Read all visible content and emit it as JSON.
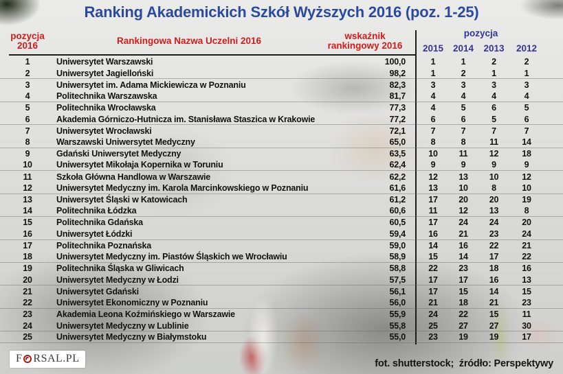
{
  "title": "Ranking Akademickich Szkół Wyższych 2016 (poz. 1-25)",
  "theme": {
    "title_color": "#2b4a9e",
    "header_red": "#d11c1c",
    "header_navy": "#34349b",
    "body_text": "#121212"
  },
  "table": {
    "headers": {
      "position_line1": "pozycja",
      "position_line2": "2016",
      "name": "Rankingowa Nazwa Uczelni 2016",
      "score_line1": "wskaźnik",
      "score_line2": "rankingowy 2016",
      "years_group": "pozycja",
      "years": [
        "2015",
        "2014",
        "2013",
        "2012"
      ]
    }
  },
  "chart_data": {
    "type": "table",
    "title": "Ranking Akademickich Szkół Wyższych 2016 (poz. 1-25)",
    "columns": [
      "pozycja 2016",
      "Rankingowa Nazwa Uczelni 2016",
      "wskaźnik rankingowy 2016",
      "pozycja 2015",
      "pozycja 2014",
      "pozycja 2013",
      "pozycja 2012"
    ],
    "rows": [
      {
        "pos": 1,
        "name": "Uniwersytet Warszawski",
        "score": "100,0",
        "years": [
          1,
          1,
          2,
          2
        ]
      },
      {
        "pos": 2,
        "name": "Uniwersytet Jagielloński",
        "score": "98,2",
        "years": [
          1,
          2,
          1,
          1
        ]
      },
      {
        "pos": 3,
        "name": "Uniwersytet im. Adama Mickiewicza w Poznaniu",
        "score": "82,3",
        "years": [
          3,
          3,
          3,
          3
        ]
      },
      {
        "pos": 4,
        "name": "Politechnika Warszawska",
        "score": "81,7",
        "years": [
          4,
          4,
          4,
          4
        ]
      },
      {
        "pos": 5,
        "name": "Politechnika Wrocławska",
        "score": "77,3",
        "years": [
          4,
          5,
          6,
          5
        ]
      },
      {
        "pos": 6,
        "name": "Akademia Górniczo-Hutnicza im. Stanisława Staszica w Krakowie",
        "score": "77,2",
        "years": [
          6,
          6,
          5,
          6
        ]
      },
      {
        "pos": 7,
        "name": "Uniwersytet Wrocławski",
        "score": "72,1",
        "years": [
          7,
          7,
          7,
          7
        ]
      },
      {
        "pos": 8,
        "name": "Warszawski Uniwersytet Medyczny",
        "score": "65,0",
        "years": [
          8,
          8,
          11,
          14
        ]
      },
      {
        "pos": 9,
        "name": "Gdański Uniwersytet Medyczny",
        "score": "63,5",
        "years": [
          10,
          11,
          12,
          18
        ]
      },
      {
        "pos": 10,
        "name": "Uniwersytet Mikołaja Kopernika w Toruniu",
        "score": "62,4",
        "years": [
          9,
          9,
          9,
          9
        ]
      },
      {
        "pos": 11,
        "name": "Szkoła Główna Handlowa w Warszawie",
        "score": "62,2",
        "years": [
          12,
          13,
          10,
          12
        ]
      },
      {
        "pos": 12,
        "name": "Uniwersytet Medyczny im. Karola Marcinkowskiego w Poznaniu",
        "score": "61,6",
        "years": [
          13,
          10,
          8,
          10
        ]
      },
      {
        "pos": 13,
        "name": "Uniwersytet Śląski w Katowicach",
        "score": "61,2",
        "years": [
          17,
          20,
          20,
          19
        ]
      },
      {
        "pos": 14,
        "name": "Politechnika Łódzka",
        "score": "60,6",
        "years": [
          11,
          12,
          13,
          8
        ]
      },
      {
        "pos": 15,
        "name": "Politechnika Gdańska",
        "score": "60,5",
        "years": [
          17,
          24,
          24,
          20
        ]
      },
      {
        "pos": 16,
        "name": "Uniwersytet Łódzki",
        "score": "59,4",
        "years": [
          16,
          21,
          23,
          24
        ]
      },
      {
        "pos": 17,
        "name": "Politechnika Poznańska",
        "score": "59,0",
        "years": [
          14,
          16,
          22,
          21
        ]
      },
      {
        "pos": 18,
        "name": "Uniwersytet Medyczny im. Piastów Śląskich we Wrocławiu",
        "score": "58,9",
        "years": [
          15,
          14,
          17,
          22
        ]
      },
      {
        "pos": 19,
        "name": "Politechnika Śląska w Gliwicach",
        "score": "58,8",
        "years": [
          22,
          23,
          18,
          16
        ]
      },
      {
        "pos": 20,
        "name": "Uniwersytet Medyczny w Łodzi",
        "score": "57,5",
        "years": [
          17,
          17,
          16,
          13
        ]
      },
      {
        "pos": 21,
        "name": "Uniwersytet Gdański",
        "score": "56,1",
        "years": [
          17,
          15,
          14,
          15
        ]
      },
      {
        "pos": 22,
        "name": "Uniwersytet Ekonomiczny w Poznaniu",
        "score": "56,0",
        "years": [
          21,
          18,
          21,
          23
        ]
      },
      {
        "pos": 23,
        "name": "Akademia Leona Koźmińskiego w Warszawie",
        "score": "55,9",
        "years": [
          24,
          22,
          15,
          11
        ]
      },
      {
        "pos": 24,
        "name": "Uniwersytet Medyczny w Lublinie",
        "score": "55,8",
        "years": [
          25,
          27,
          27,
          30
        ]
      },
      {
        "pos": 25,
        "name": "Uniwersytet Medyczny w Białymstoku",
        "score": "55,0",
        "years": [
          23,
          19,
          19,
          17
        ]
      }
    ]
  },
  "footer": {
    "logo_prefix": "F",
    "logo_suffix": "RSAL.PL",
    "credit": "fot. shutterstock;  źródło: Perspektywy"
  }
}
